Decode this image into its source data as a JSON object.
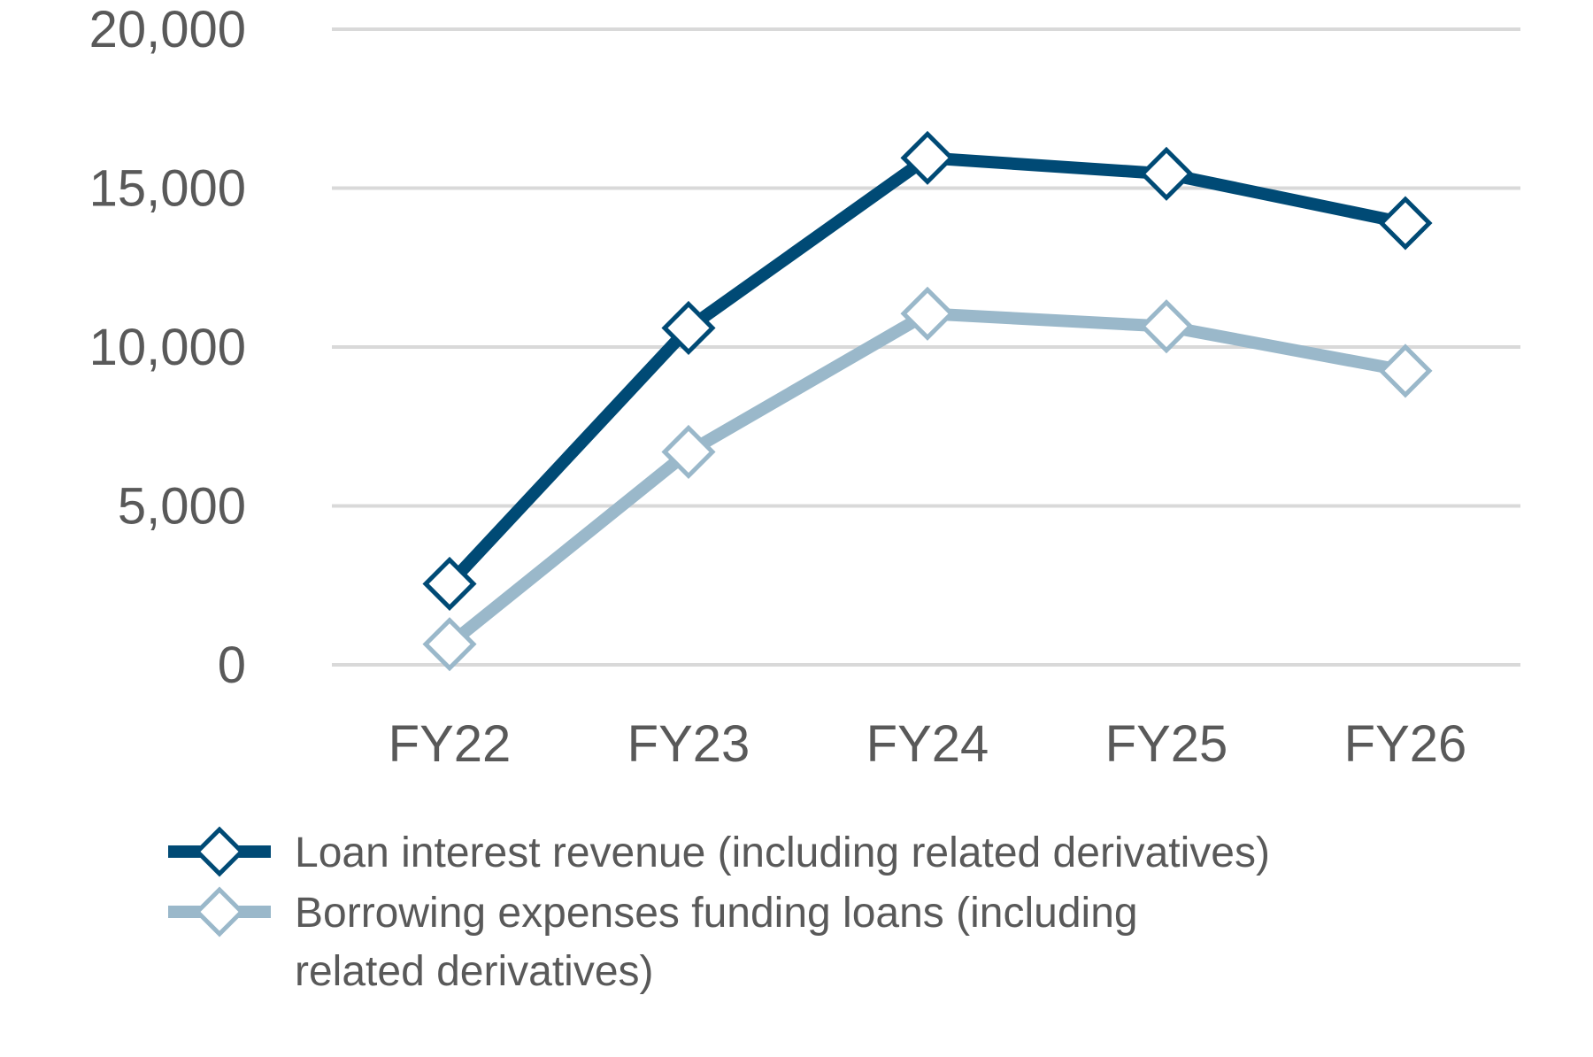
{
  "chart_data": {
    "type": "line",
    "title": "",
    "xlabel": "",
    "ylabel": "",
    "categories": [
      "FY22",
      "FY23",
      "FY24",
      "FY25",
      "FY26"
    ],
    "ylim": [
      0,
      20000
    ],
    "yticks": [
      0,
      5000,
      10000,
      15000,
      20000
    ],
    "ytick_labels": [
      "0",
      "5,000",
      "10,000",
      "15,000",
      "20,000"
    ],
    "grid": true,
    "legend_position": "bottom",
    "series": [
      {
        "name": "Loan interest revenue (including related derivatives)",
        "legend_lines": [
          "Loan interest revenue (including related derivatives)"
        ],
        "color": "#004a75",
        "marker": "diamond-open",
        "values": [
          2550,
          10600,
          15950,
          15450,
          13900
        ]
      },
      {
        "name": "Borrowing expenses funding loans (including related derivatives)",
        "legend_lines": [
          "Borrowing expenses funding loans (including",
          "related derivatives)"
        ],
        "color": "#9ab8ca",
        "marker": "diamond-open",
        "values": [
          650,
          6700,
          11050,
          10650,
          9250
        ]
      }
    ]
  }
}
